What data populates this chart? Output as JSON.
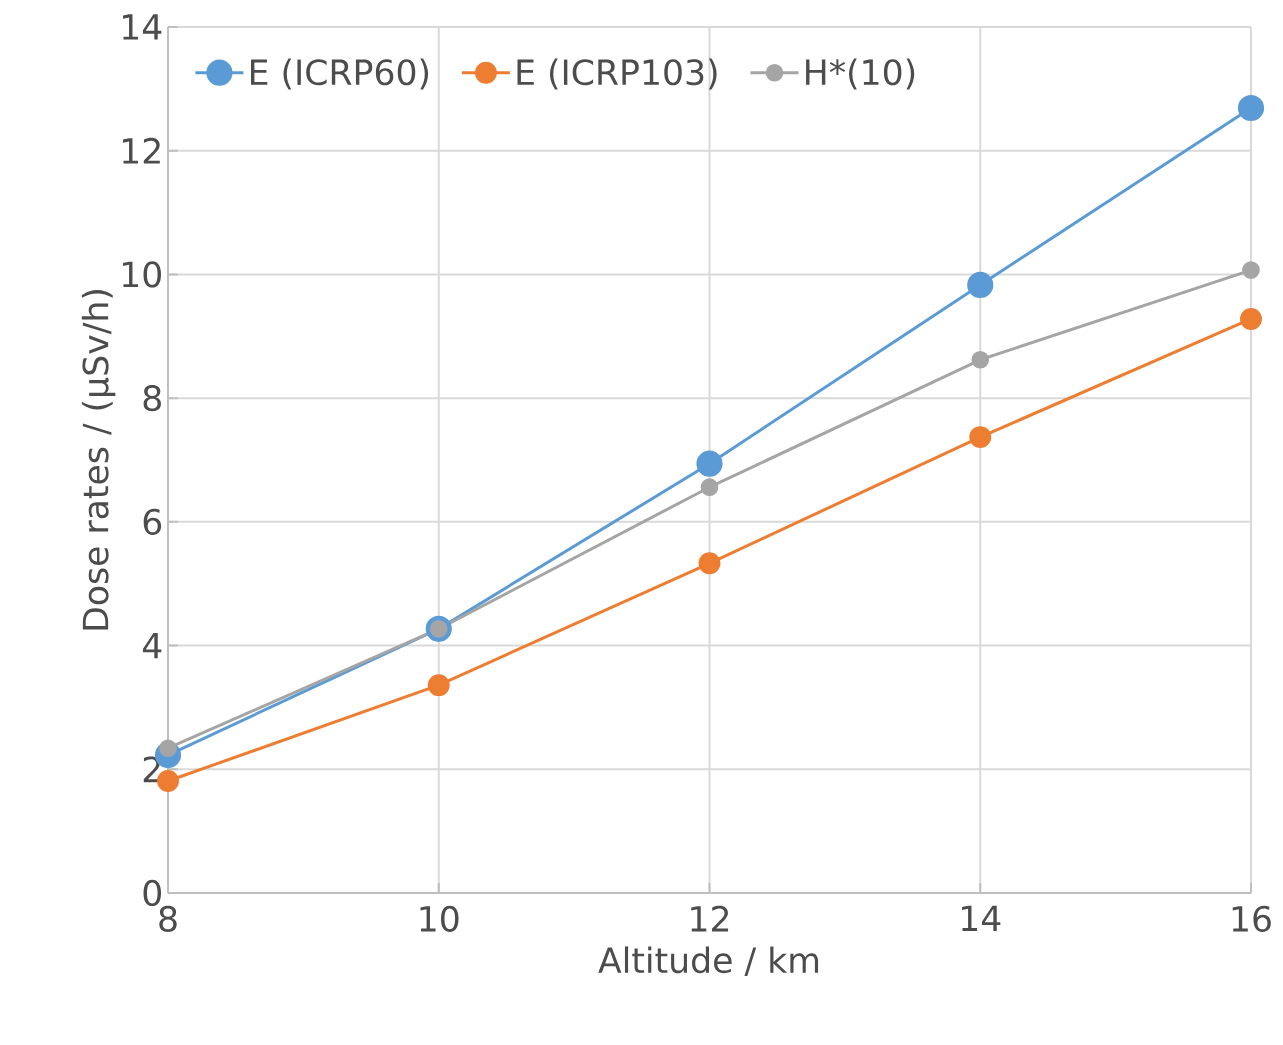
{
  "chart_data": {
    "type": "line",
    "xlabel": "Altitude / km",
    "ylabel": "Dose rates / (µSv/h)",
    "x": [
      8,
      10,
      12,
      14,
      16
    ],
    "series": [
      {
        "name": "E (ICRP60)",
        "color": "#5b9bd5",
        "values": [
          2.23,
          4.27,
          6.94,
          9.83,
          12.69
        ]
      },
      {
        "name": "E (ICRP103)",
        "color": "#ed7d31",
        "values": [
          1.81,
          3.36,
          5.33,
          7.37,
          9.28
        ]
      },
      {
        "name": "H*(10)",
        "color": "#a5a5a5",
        "values": [
          2.34,
          4.27,
          6.56,
          8.62,
          10.07
        ]
      }
    ],
    "xlim": [
      8,
      16
    ],
    "xticks": [
      8,
      10,
      12,
      14,
      16
    ],
    "ylim": [
      0,
      14
    ],
    "yticks": [
      0,
      2,
      4,
      6,
      8,
      10,
      12,
      14
    ],
    "grid": true,
    "legend": "top",
    "marker": "circle",
    "line_style": "solid"
  }
}
